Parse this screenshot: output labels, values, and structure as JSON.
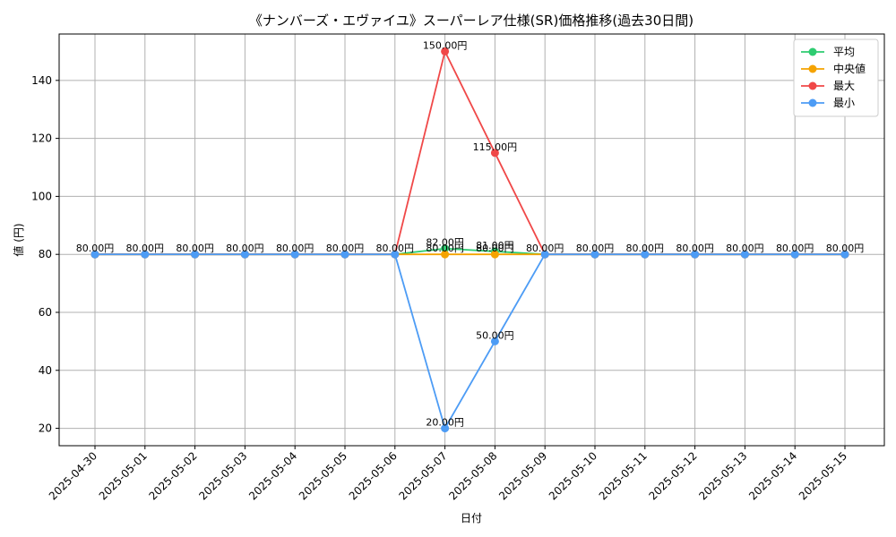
{
  "chart_data": {
    "type": "line",
    "title": "《ナンバーズ・エヴァイユ》スーパーレア仕様(SR)価格推移(過去30日間)",
    "xlabel": "日付",
    "ylabel": "値 (円)",
    "ylim": [
      14,
      156
    ],
    "yticks": [
      20,
      40,
      60,
      80,
      100,
      120,
      140
    ],
    "grid": true,
    "legend_position": "top-right",
    "categories": [
      "2025-04-30",
      "2025-05-01",
      "2025-05-02",
      "2025-05-03",
      "2025-05-04",
      "2025-05-05",
      "2025-05-06",
      "2025-05-07",
      "2025-05-08",
      "2025-05-09",
      "2025-05-10",
      "2025-05-11",
      "2025-05-12",
      "2025-05-13",
      "2025-05-14",
      "2025-05-15"
    ],
    "series": [
      {
        "name": "平均",
        "color": "#2ecc71",
        "values": [
          80,
          80,
          80,
          80,
          80,
          80,
          80,
          82,
          81,
          80,
          80,
          80,
          80,
          80,
          80,
          80
        ]
      },
      {
        "name": "中央値",
        "color": "#f5a300",
        "values": [
          80,
          80,
          80,
          80,
          80,
          80,
          80,
          80,
          80,
          80,
          80,
          80,
          80,
          80,
          80,
          80
        ]
      },
      {
        "name": "最大",
        "color": "#f04848",
        "values": [
          80,
          80,
          80,
          80,
          80,
          80,
          80,
          150,
          115,
          80,
          80,
          80,
          80,
          80,
          80,
          80
        ]
      },
      {
        "name": "最小",
        "color": "#4d9cf5",
        "values": [
          80,
          80,
          80,
          80,
          80,
          80,
          80,
          20,
          50,
          80,
          80,
          80,
          80,
          80,
          80,
          80
        ]
      }
    ],
    "annotations": [
      {
        "category": "2025-04-30",
        "value": 80,
        "text": "80.00円"
      },
      {
        "category": "2025-05-01",
        "value": 80,
        "text": "80.00円"
      },
      {
        "category": "2025-05-02",
        "value": 80,
        "text": "80.00円"
      },
      {
        "category": "2025-05-03",
        "value": 80,
        "text": "80.00円"
      },
      {
        "category": "2025-05-04",
        "value": 80,
        "text": "80.00円"
      },
      {
        "category": "2025-05-05",
        "value": 80,
        "text": "80.00円"
      },
      {
        "category": "2025-05-06",
        "value": 80,
        "text": "80.00円"
      },
      {
        "category": "2025-05-07",
        "value": 150,
        "text": "150.00円"
      },
      {
        "category": "2025-05-07",
        "value": 82,
        "text": "82.00円"
      },
      {
        "category": "2025-05-07",
        "value": 80,
        "text": "80.00円"
      },
      {
        "category": "2025-05-07",
        "value": 20,
        "text": "20.00円"
      },
      {
        "category": "2025-05-08",
        "value": 115,
        "text": "115.00円"
      },
      {
        "category": "2025-05-08",
        "value": 81,
        "text": "81.00円"
      },
      {
        "category": "2025-05-08",
        "value": 80,
        "text": "80.00円"
      },
      {
        "category": "2025-05-08",
        "value": 50,
        "text": "50.00円"
      },
      {
        "category": "2025-05-09",
        "value": 80,
        "text": "80.00円"
      },
      {
        "category": "2025-05-10",
        "value": 80,
        "text": "80.00円"
      },
      {
        "category": "2025-05-11",
        "value": 80,
        "text": "80.00円"
      },
      {
        "category": "2025-05-12",
        "value": 80,
        "text": "80.00円"
      },
      {
        "category": "2025-05-13",
        "value": 80,
        "text": "80.00円"
      },
      {
        "category": "2025-05-14",
        "value": 80,
        "text": "80.00円"
      },
      {
        "category": "2025-05-15",
        "value": 80,
        "text": "80.00円"
      }
    ]
  }
}
